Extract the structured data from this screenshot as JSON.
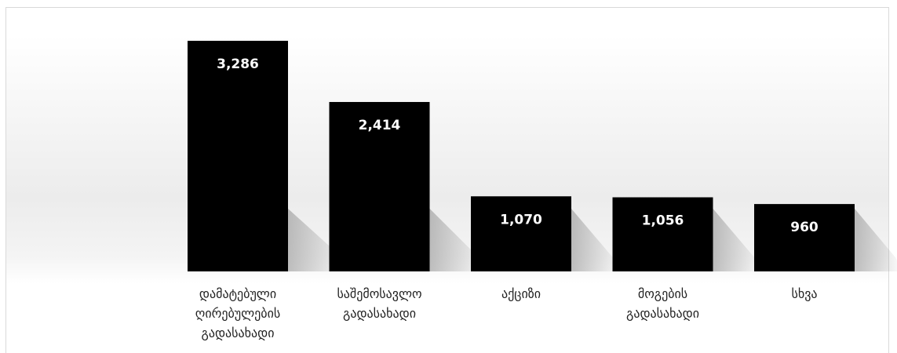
{
  "chart_data": {
    "type": "bar",
    "categories": [
      [
        "დამატებული",
        "ღირებულების",
        "გადასახადი"
      ],
      [
        "საშემოსავლო",
        "გადასახადი"
      ],
      [
        "აქციზი"
      ],
      [
        "მოგების",
        "გადასახადი"
      ],
      [
        "სხვა"
      ]
    ],
    "values": [
      3286,
      2414,
      1070,
      1056,
      960
    ],
    "value_labels": [
      "3,286",
      "2,414",
      "1,070",
      "1,056",
      "960"
    ],
    "title": "",
    "xlabel": "",
    "ylabel": "",
    "ylim": [
      0,
      3400
    ],
    "grid": false,
    "legend": "none",
    "colors": {
      "bar": "#000000",
      "value_label": "#ffffff",
      "category_label": "#222222",
      "shadow": "#9a9a9a"
    }
  }
}
